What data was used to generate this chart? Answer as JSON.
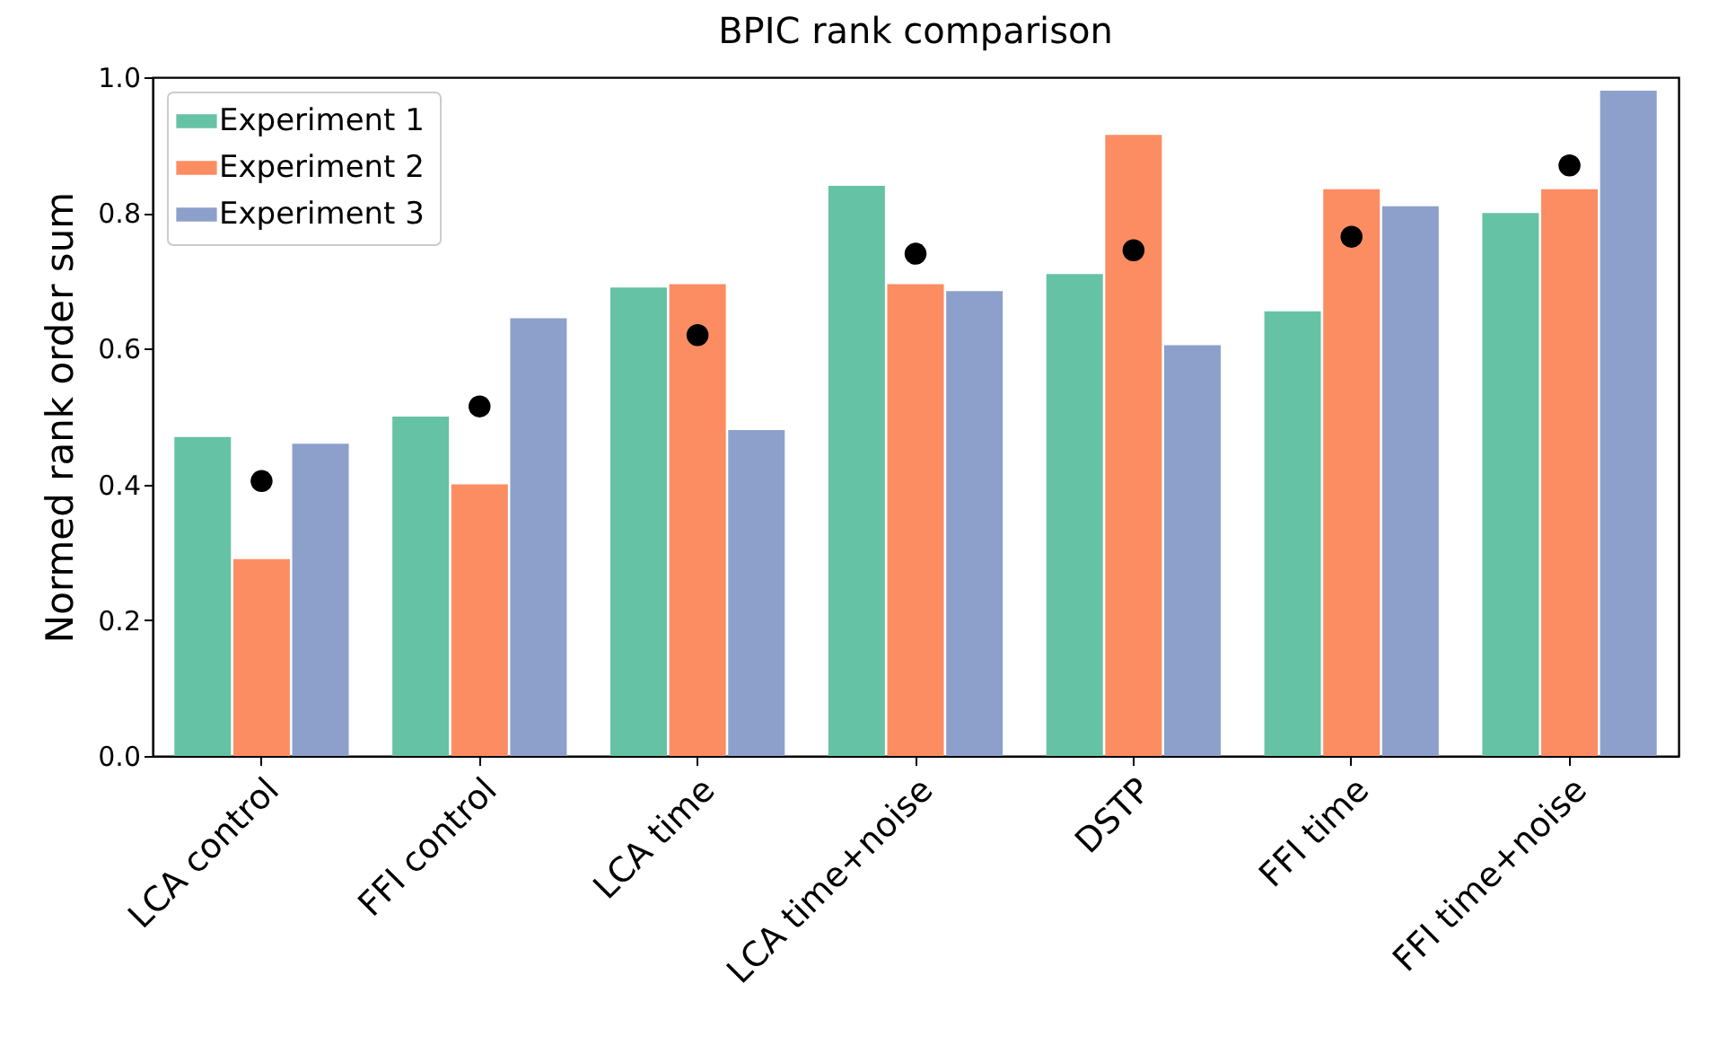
{
  "chart_data": {
    "type": "bar",
    "title": "BPIC rank comparison",
    "ylabel": "Normed rank order sum",
    "categories": [
      "LCA control",
      "FFI control",
      "LCA time",
      "LCA time+noise",
      "DSTP",
      "FFI time",
      "FFI time+noise"
    ],
    "series": [
      {
        "name": "Experiment 1",
        "color": "#66c2a5",
        "values": [
          0.47,
          0.5,
          0.69,
          0.84,
          0.71,
          0.655,
          0.8
        ]
      },
      {
        "name": "Experiment 2",
        "color": "#fc8d62",
        "values": [
          0.29,
          0.4,
          0.695,
          0.695,
          0.915,
          0.835,
          0.835
        ]
      },
      {
        "name": "Experiment 3",
        "color": "#8da0cb",
        "values": [
          0.46,
          0.645,
          0.48,
          0.685,
          0.605,
          0.81,
          0.98
        ]
      },
      {
        "type": "scatter",
        "color": "#000000",
        "marker": "circle",
        "x": [
          "LCA control",
          "FFI control",
          "LCA time",
          "LCA time+noise",
          "DSTP",
          "FFI time",
          "FFI time+noise"
        ],
        "values": [
          0.405,
          0.515,
          0.62,
          0.74,
          0.745,
          0.765,
          0.87
        ]
      }
    ],
    "ylim": [
      0,
      1
    ],
    "yticks": [
      {
        "value": 0,
        "label": "0.0"
      },
      {
        "value": 0.2,
        "label": "0.2"
      },
      {
        "value": 0.4,
        "label": "0.4"
      },
      {
        "value": 0.6,
        "label": "0.6"
      },
      {
        "value": 0.8,
        "label": "0.8"
      },
      {
        "value": 1,
        "label": "1.0"
      }
    ],
    "grid": false,
    "legend": "top left"
  }
}
